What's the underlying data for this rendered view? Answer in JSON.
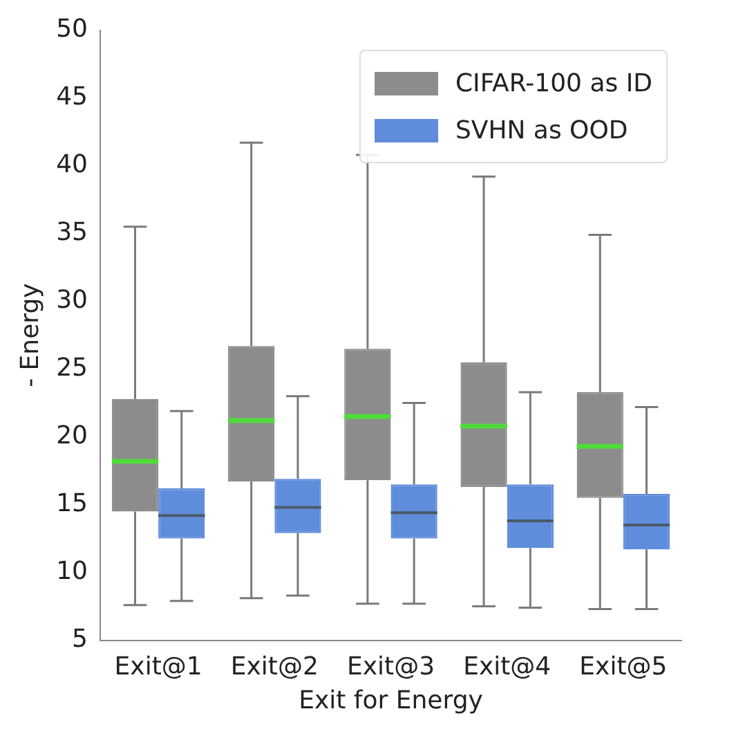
{
  "chart_data": {
    "type": "box",
    "xlabel": "Exit for Energy",
    "ylabel": "- Energy",
    "categories": [
      "Exit@1",
      "Exit@2",
      "Exit@3",
      "Exit@4",
      "Exit@5"
    ],
    "ylim": [
      5,
      50
    ],
    "yticks": [
      5,
      10,
      15,
      20,
      25,
      30,
      35,
      40,
      45,
      50
    ],
    "grid": false,
    "legend": "top right",
    "series": [
      {
        "name": "CIFAR-100 as ID",
        "color": "#8c8c8c",
        "boxes": [
          {
            "low": 7.6,
            "q1": 14.5,
            "median": 18.2,
            "q3": 22.8,
            "high": 35.5
          },
          {
            "low": 8.1,
            "q1": 16.7,
            "median": 21.2,
            "q3": 26.7,
            "high": 41.7
          },
          {
            "low": 7.7,
            "q1": 16.8,
            "median": 21.5,
            "q3": 26.5,
            "high": 40.8
          },
          {
            "low": 7.5,
            "q1": 16.3,
            "median": 20.8,
            "q3": 25.5,
            "high": 39.2
          },
          {
            "low": 7.3,
            "q1": 15.5,
            "median": 19.3,
            "q3": 23.3,
            "high": 34.9
          }
        ]
      },
      {
        "name": "SVHN as OOD",
        "color": "#5f8ddb",
        "boxes": [
          {
            "low": 7.9,
            "q1": 12.5,
            "median": 14.2,
            "q3": 16.2,
            "high": 21.9
          },
          {
            "low": 8.3,
            "q1": 12.9,
            "median": 14.8,
            "q3": 16.9,
            "high": 23.0
          },
          {
            "low": 7.7,
            "q1": 12.5,
            "median": 14.4,
            "q3": 16.5,
            "high": 22.5
          },
          {
            "low": 7.4,
            "q1": 11.8,
            "median": 13.8,
            "q3": 16.5,
            "high": 23.3
          },
          {
            "low": 7.3,
            "q1": 11.7,
            "median": 13.5,
            "q3": 15.8,
            "high": 22.2
          }
        ]
      }
    ]
  }
}
